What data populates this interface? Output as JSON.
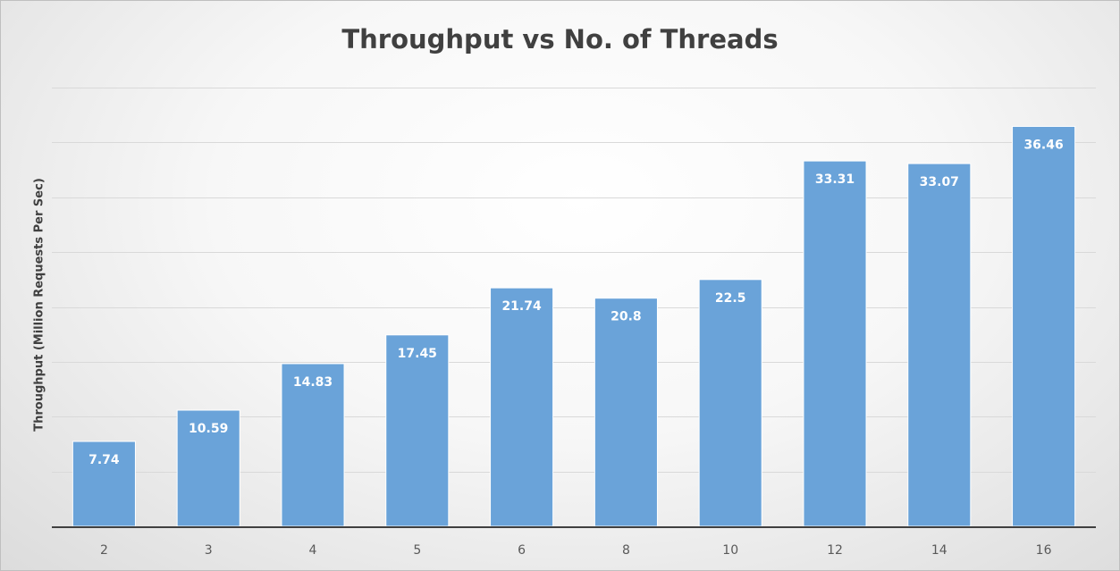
{
  "chart_data": {
    "type": "bar",
    "title": "Throughput vs No. of Threads",
    "xlabel": "",
    "ylabel": "Throughput (Million Requests Per Sec)",
    "categories": [
      "2",
      "3",
      "4",
      "5",
      "6",
      "8",
      "10",
      "12",
      "14",
      "16"
    ],
    "values": [
      7.74,
      10.59,
      14.83,
      17.45,
      21.74,
      20.8,
      22.5,
      33.31,
      33.07,
      36.46
    ],
    "ylim": [
      0,
      40
    ],
    "grid": true,
    "data_labels": true,
    "colors": {
      "bar": "#6aa3d9",
      "bar_edge": "#ffffff",
      "grid": "#d9d9d9",
      "axis": "#404040"
    }
  }
}
